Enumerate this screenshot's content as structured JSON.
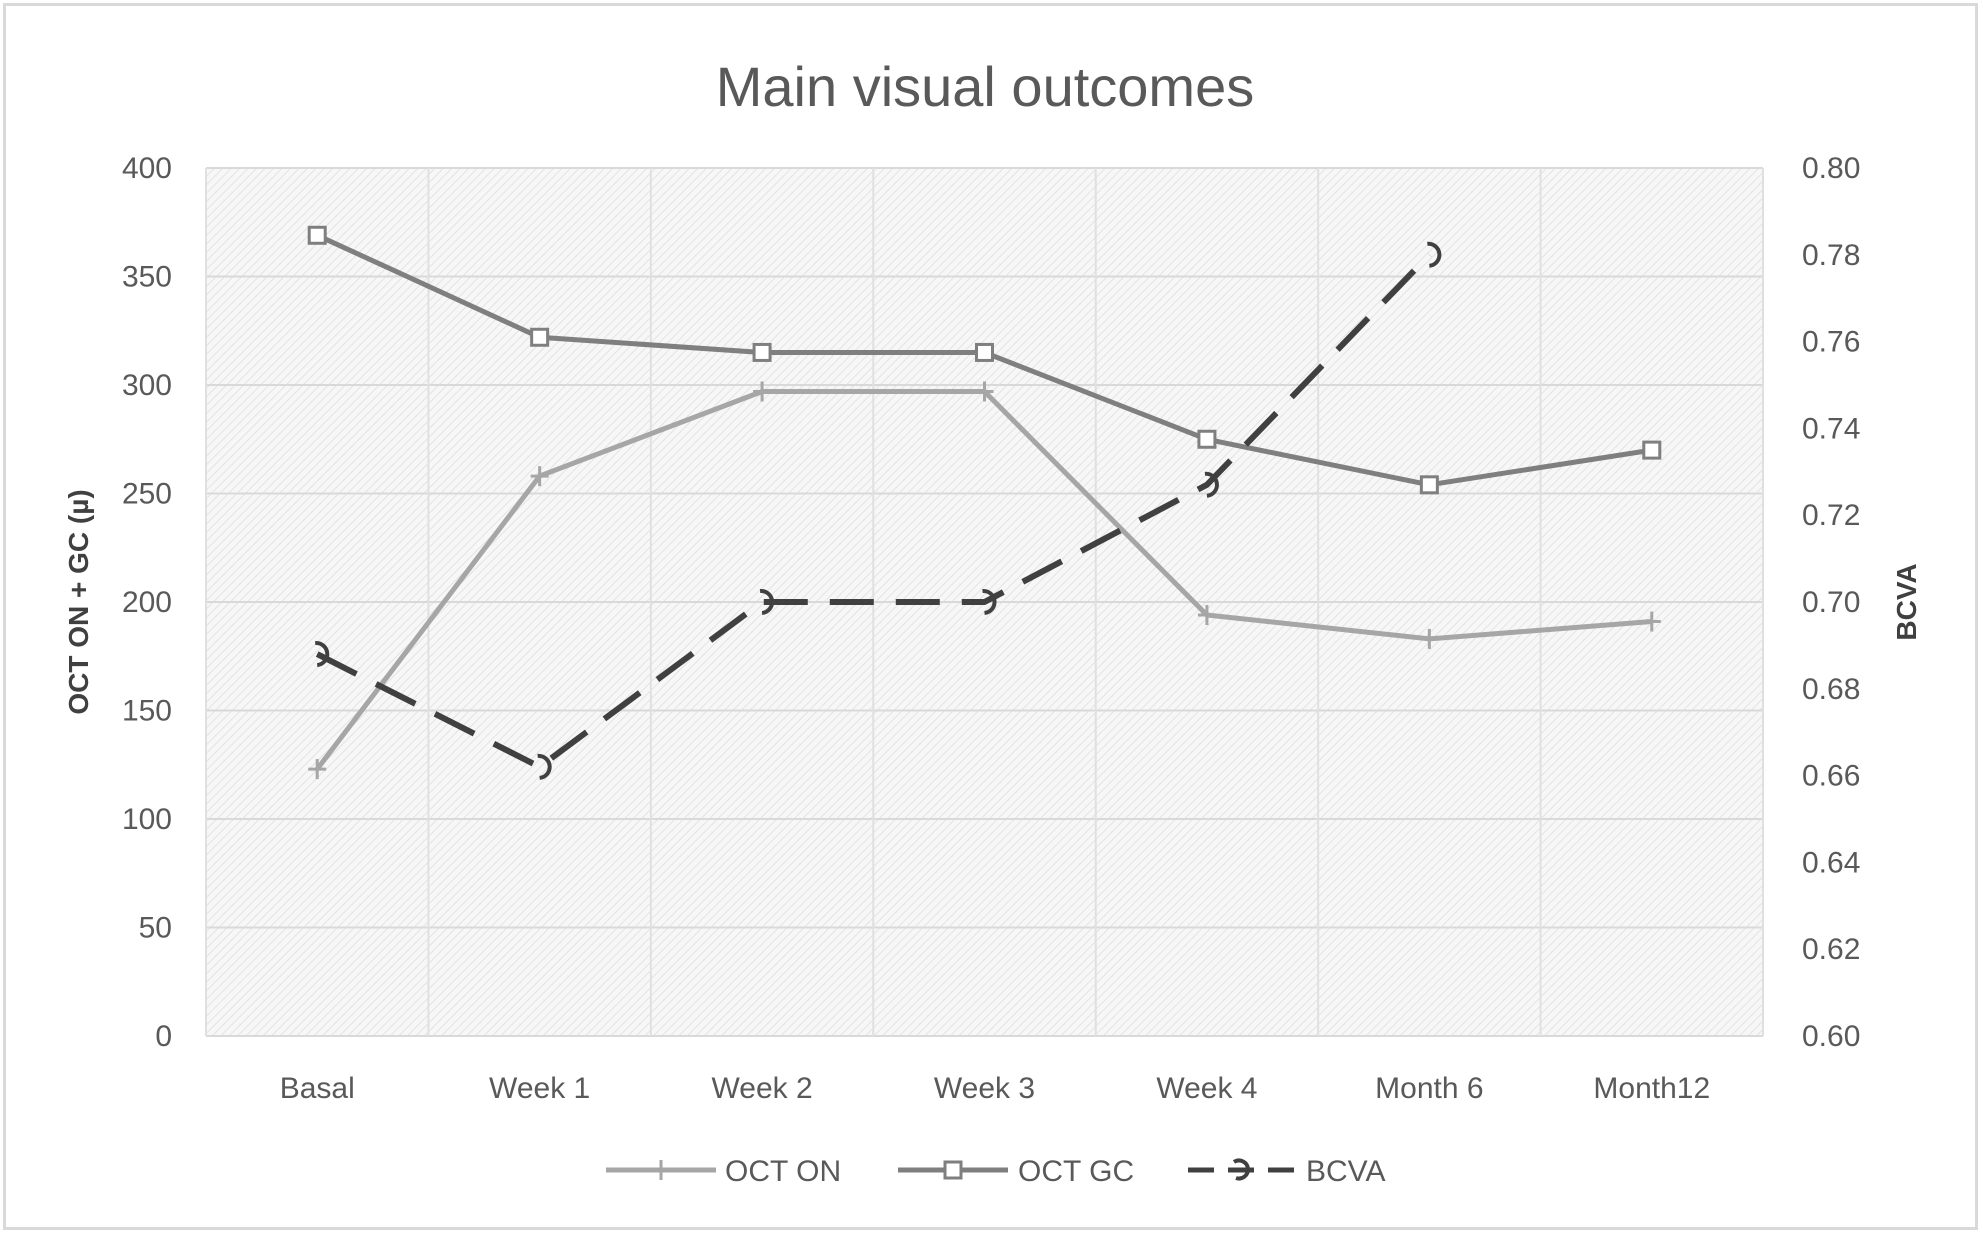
{
  "chart_data": {
    "type": "line",
    "title": "Main visual outcomes",
    "categories": [
      "Basal",
      "Week 1",
      "Week 2",
      "Week 3",
      "Week 4",
      "Month 6",
      "Month12"
    ],
    "y_left": {
      "label": "OCT ON + GC (µ)",
      "range": [
        0,
        400
      ],
      "ticks": [
        0,
        50,
        100,
        150,
        200,
        250,
        300,
        350,
        400
      ],
      "tick_labels": [
        "0",
        "50",
        "100",
        "150",
        "200",
        "250",
        "300",
        "350",
        "400"
      ]
    },
    "y_right": {
      "label": "BCVA",
      "range": [
        0.6,
        0.8
      ],
      "ticks": [
        0.6,
        0.62,
        0.64,
        0.66,
        0.68,
        0.7,
        0.72,
        0.74,
        0.76,
        0.78,
        0.8
      ],
      "tick_labels": [
        "0.60",
        "0.62",
        "0.64",
        "0.66",
        "0.68",
        "0.70",
        "0.72",
        "0.74",
        "0.76",
        "0.78",
        "0.80"
      ]
    },
    "series": [
      {
        "name": "OCT ON",
        "axis": "left",
        "color": "#a6a6a6",
        "marker": "plus",
        "values": [
          123,
          258,
          297,
          297,
          194,
          183,
          191
        ]
      },
      {
        "name": "OCT GC",
        "axis": "left",
        "color": "#7f7f7f",
        "marker": "square",
        "values": [
          369,
          322,
          315,
          315,
          275,
          254,
          270
        ]
      },
      {
        "name": "BCVA",
        "axis": "right",
        "color": "#404040",
        "marker": "hook",
        "dashed": true,
        "values": [
          0.688,
          0.662,
          0.7,
          0.7,
          0.727,
          0.78,
          null
        ]
      }
    ],
    "grid": true,
    "legend_position": "bottom"
  }
}
